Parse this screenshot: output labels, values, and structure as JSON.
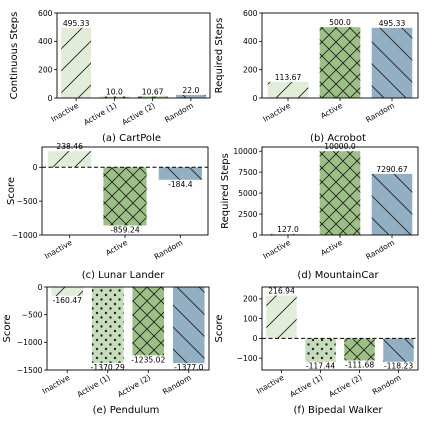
{
  "chart_data": [
    {
      "type": "bar",
      "caption": "(a) CartPole",
      "ylabel": "Continuous Steps",
      "ylim": [
        0,
        600
      ],
      "yticks": [
        0,
        200,
        400,
        600
      ],
      "ytick_labels": [
        "0",
        "200",
        "400",
        "600"
      ],
      "categories": [
        "Inactive",
        "Active (1)",
        "Active (2)",
        "Random"
      ],
      "values": [
        495.33,
        10.0,
        10.67,
        22.0
      ],
      "value_labels": [
        "495.33",
        "10.0",
        "10.67",
        "22.0"
      ],
      "baseline": false
    },
    {
      "type": "bar",
      "caption": "(b) Acrobot",
      "ylabel": "Required Steps",
      "ylim": [
        0,
        600
      ],
      "yticks": [
        0,
        200,
        400,
        600
      ],
      "ytick_labels": [
        "0",
        "200",
        "400",
        "600"
      ],
      "categories": [
        "Inactive",
        "Active",
        "Random"
      ],
      "values": [
        113.67,
        500.0,
        495.33
      ],
      "value_labels": [
        "113.67",
        "500.0",
        "495.33"
      ],
      "baseline": false
    },
    {
      "type": "bar",
      "caption": "(c) Lunar Lander",
      "ylabel": "Score",
      "ylim": [
        -1000,
        300
      ],
      "yticks": [
        -1000,
        -500,
        0
      ],
      "ytick_labels": [
        "−1000",
        "−500",
        "0"
      ],
      "categories": [
        "Inactive",
        "Active",
        "Random"
      ],
      "values": [
        238.46,
        -859.24,
        -184.4
      ],
      "value_labels": [
        "238.46",
        "-859.24",
        "-184.4"
      ],
      "baseline": true
    },
    {
      "type": "bar",
      "caption": "(d) MountainCar",
      "ylabel": "Required Steps",
      "ylim": [
        0,
        10500
      ],
      "yticks": [
        0,
        2500,
        5000,
        7500,
        10000
      ],
      "ytick_labels": [
        "0",
        "2500",
        "5000",
        "7500",
        "10000"
      ],
      "categories": [
        "Inactive",
        "Active",
        "Random"
      ],
      "values": [
        127.0,
        10000.0,
        7290.67
      ],
      "value_labels": [
        "127.0",
        "10000.0",
        "7290.67"
      ],
      "baseline": false
    },
    {
      "type": "bar",
      "caption": "(e) Pendulum",
      "ylabel": "Score",
      "ylim": [
        -1500,
        0
      ],
      "yticks": [
        -1500,
        -1000,
        -500,
        0
      ],
      "ytick_labels": [
        "−1500",
        "−1000",
        "−500",
        "0"
      ],
      "categories": [
        "Inactive",
        "Active (1)",
        "Active (2)",
        "Random"
      ],
      "values": [
        -160.47,
        -1370.29,
        -1235.02,
        -1377.0
      ],
      "value_labels": [
        "-160.47",
        "-1370.29",
        "-1235.02",
        "-1377.0"
      ],
      "baseline": false
    },
    {
      "type": "bar",
      "caption": "(f) Bipedal Walker",
      "ylabel": "Score",
      "ylim": [
        -160,
        260
      ],
      "yticks": [
        -100,
        0,
        100,
        200
      ],
      "ytick_labels": [
        "−100",
        "0",
        "100",
        "200"
      ],
      "categories": [
        "Inactive",
        "Active (1)",
        "Active (2)",
        "Random"
      ],
      "values": [
        216.94,
        -117.44,
        -111.68,
        -118.23
      ],
      "value_labels": [
        "216.94",
        "-117.44",
        "-111.68",
        "-118.23"
      ],
      "baseline": true
    }
  ],
  "styles": {
    "Inactive": {
      "color": "#e2edd9",
      "pattern": "diag-fwd"
    },
    "Active (1)": {
      "color": "#c7dcbb",
      "pattern": "dots"
    },
    "Active (2)": {
      "color": "#9bbf85",
      "pattern": "cross"
    },
    "Active": {
      "color": "#9bbf85",
      "pattern": "cross"
    },
    "Random": {
      "color": "#93afc4",
      "pattern": "diag-back"
    }
  }
}
